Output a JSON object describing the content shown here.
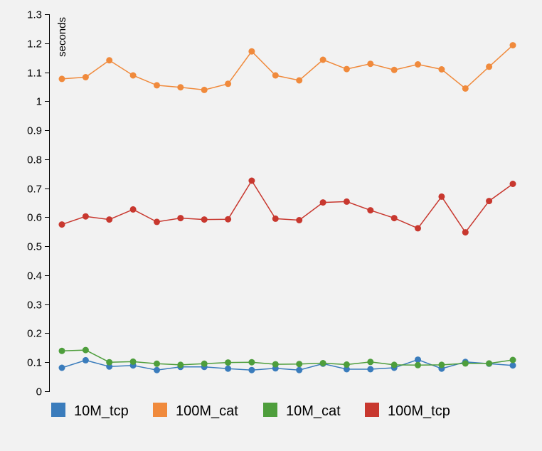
{
  "chart_data": {
    "type": "line",
    "title": "",
    "xlabel": "",
    "ylabel": "seconds",
    "ylim": [
      0,
      1.3
    ],
    "yticks": [
      0,
      0.1,
      0.2,
      0.3,
      0.4,
      0.5,
      0.6,
      0.7,
      0.8,
      0.9,
      1,
      1.1,
      1.2,
      1.3
    ],
    "x": [
      1,
      2,
      3,
      4,
      5,
      6,
      7,
      8,
      9,
      10,
      11,
      12,
      13,
      14,
      15,
      16,
      17,
      18,
      19,
      20
    ],
    "grid": false,
    "legend": "bottom",
    "series": [
      {
        "name": "10M_tcp",
        "color": "#3a7cbc",
        "values": [
          0.081,
          0.107,
          0.085,
          0.089,
          0.073,
          0.084,
          0.084,
          0.078,
          0.073,
          0.079,
          0.073,
          0.095,
          0.076,
          0.076,
          0.081,
          0.109,
          0.078,
          0.101,
          0.095,
          0.089
        ]
      },
      {
        "name": "100M_cat",
        "color": "#f08a3c",
        "values": [
          1.077,
          1.083,
          1.141,
          1.089,
          1.055,
          1.048,
          1.039,
          1.06,
          1.172,
          1.089,
          1.072,
          1.143,
          1.111,
          1.129,
          1.108,
          1.127,
          1.11,
          1.044,
          1.119,
          1.193
        ]
      },
      {
        "name": "10M_cat",
        "color": "#4e9e3c",
        "values": [
          0.139,
          0.142,
          0.1,
          0.102,
          0.095,
          0.091,
          0.095,
          0.099,
          0.1,
          0.093,
          0.094,
          0.097,
          0.092,
          0.101,
          0.091,
          0.09,
          0.091,
          0.096,
          0.096,
          0.108
        ]
      },
      {
        "name": "100M_tcp",
        "color": "#c8382f",
        "values": [
          0.575,
          0.603,
          0.592,
          0.627,
          0.584,
          0.597,
          0.592,
          0.593,
          0.726,
          0.595,
          0.59,
          0.651,
          0.654,
          0.624,
          0.597,
          0.562,
          0.671,
          0.548,
          0.656,
          0.715
        ]
      }
    ]
  }
}
